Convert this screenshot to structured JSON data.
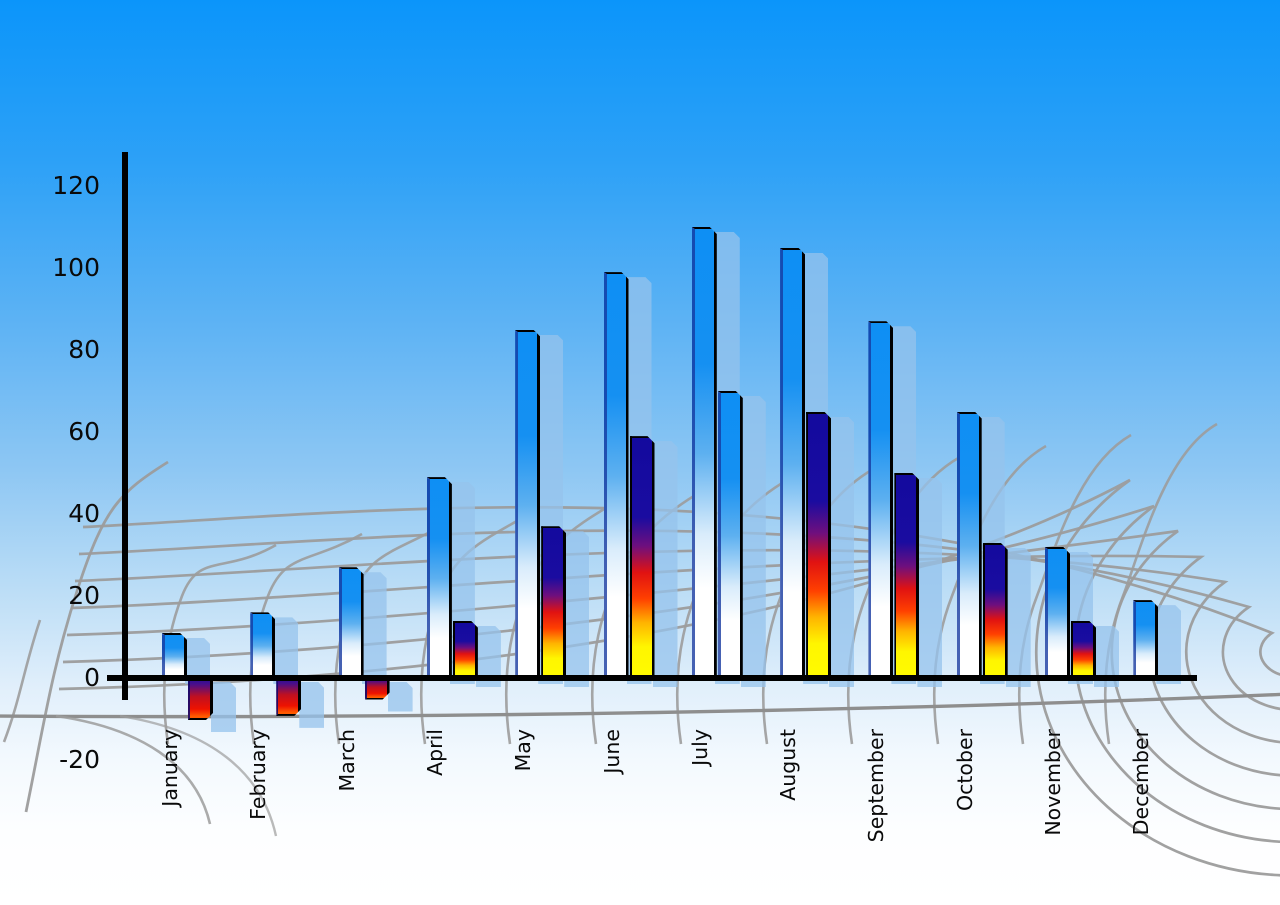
{
  "chart_data": {
    "type": "bar",
    "title": "",
    "xlabel": "",
    "ylabel": "",
    "categories": [
      "January",
      "February",
      "March",
      "April",
      "May",
      "June",
      "July",
      "August",
      "September",
      "October",
      "November",
      "December"
    ],
    "series": [
      {
        "name": "primary-blue-bars",
        "values": [
          11,
          16,
          27,
          49,
          85,
          99,
          110,
          105,
          87,
          65,
          32,
          19
        ]
      },
      {
        "name": "secondary-gradient-bars",
        "values": [
          -10,
          -9,
          -5,
          14,
          37,
          59,
          70,
          65,
          50,
          33,
          14,
          null
        ]
      }
    ],
    "secondary_bar_styles": [
      "negclr",
      "negclr",
      "negclr",
      "multi",
      "multi",
      "multi",
      "blue",
      "multi",
      "multi",
      "multi",
      "multi",
      null
    ],
    "ylim": [
      -20,
      120
    ],
    "yticks": [
      120,
      100,
      80,
      60,
      40,
      20,
      0,
      -20
    ],
    "legend_position": "none",
    "grid": "curved gray perspective mesh behind bars"
  },
  "colors": {
    "sky_top": "#0b95fa",
    "sky_bottom": "#ffffff",
    "bar_blue_top": "#0e8ff4",
    "bar_blue_bottom": "#ffffff",
    "bar_gradient_navy": "#130a9e",
    "bar_gradient_red": "#e01212",
    "bar_gradient_yellow": "#fff600",
    "echo_bar": "#96c3ec",
    "mesh_line": "#9c9c9c",
    "axis": "#000000",
    "text": "#0a0a0a"
  }
}
